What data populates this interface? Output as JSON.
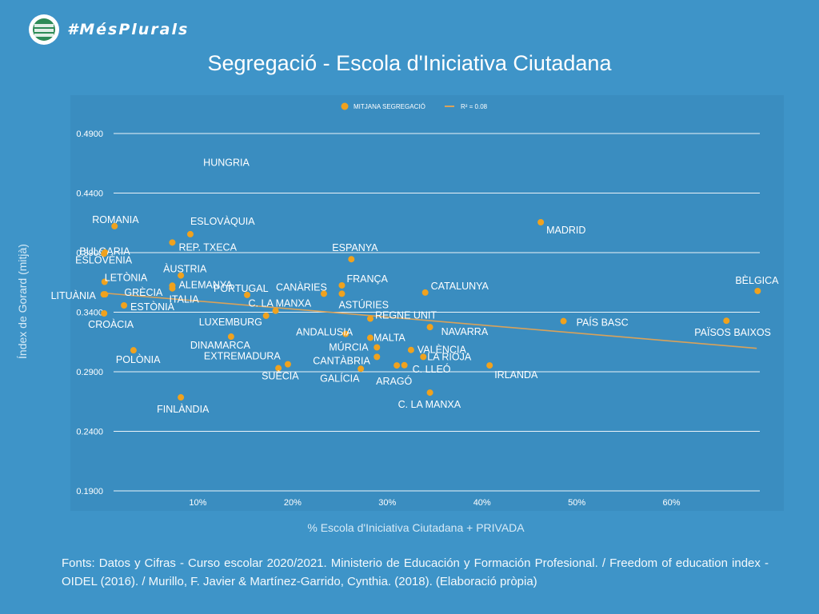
{
  "brand": {
    "name": "#MésPlurals",
    "logo_icon": "mesplurals-logo-icon"
  },
  "chart_data": {
    "type": "scatter",
    "title": "Segregació - Escola d'Iniciativa Ciutadana",
    "xlabel": "% Escola d'Iniciativa Ciutadana + PRIVADA",
    "ylabel": "Índex de Gorard (mitjà)",
    "xlim": [
      0,
      0.7
    ],
    "ylim": [
      0.19,
      0.49
    ],
    "x_ticks": [
      "10%",
      "20%",
      "30%",
      "40%",
      "50%",
      "60%"
    ],
    "x_tick_values": [
      0.1,
      0.2,
      0.3,
      0.4,
      0.5,
      0.6
    ],
    "y_ticks": [
      "0.1900",
      "0.2400",
      "0.2900",
      "0.3400",
      "0.3900",
      "0.4400",
      "0.4900"
    ],
    "y_tick_values": [
      0.19,
      0.24,
      0.29,
      0.34,
      0.39,
      0.44,
      0.49
    ],
    "grid": true,
    "legend_position": "top-center",
    "legend": {
      "series": "MITJANA SEGREGACIÓ",
      "trend": "R² = 0.08"
    },
    "colors": {
      "point": "#f0a21e",
      "trend": "#d9a25a",
      "plot_bg": "#3a8dc0",
      "page_bg": "#3e94c8",
      "grid": "#ffffff"
    },
    "trendline": {
      "x": [
        0.0,
        0.69
      ],
      "y": [
        0.3561,
        0.3097
      ]
    },
    "points": [
      {
        "label": "HUNGRIA",
        "x": 0.09,
        "y": 0.465
      },
      {
        "label": "ROMANIA",
        "x": 0.012,
        "y": 0.4122
      },
      {
        "label": "ESLOVÀQUIA",
        "x": 0.092,
        "y": 0.4055
      },
      {
        "label": "BULGARIA",
        "x": 0.002,
        "y": 0.3902
      },
      {
        "label": "ESLOVÈNIA",
        "x": 0.001,
        "y": 0.3891
      },
      {
        "label": "REP. TXECA",
        "x": 0.073,
        "y": 0.3985
      },
      {
        "label": "ÀUSTRIA",
        "x": 0.082,
        "y": 0.3708
      },
      {
        "label": "LETÒNIA",
        "x": 0.0015,
        "y": 0.3655
      },
      {
        "label": "ALEMANYA",
        "x": 0.073,
        "y": 0.3623
      },
      {
        "label": "ITALIA",
        "x": 0.073,
        "y": 0.36
      },
      {
        "label": "GRÈCIA",
        "x": 0.002,
        "y": 0.355
      },
      {
        "label": "LITUÀNIA",
        "x": 0.0005,
        "y": 0.355
      },
      {
        "label": "ESTÒNIA",
        "x": 0.022,
        "y": 0.3457
      },
      {
        "label": "CROÀCIA",
        "x": 0.001,
        "y": 0.339
      },
      {
        "label": "PORTUGAL",
        "x": 0.152,
        "y": 0.3545
      },
      {
        "label": "CANÀRIES",
        "x": 0.233,
        "y": 0.3555
      },
      {
        "label": "C. LA MANXA",
        "x": 0.182,
        "y": 0.3412
      },
      {
        "label": "LUXEMBURG",
        "x": 0.172,
        "y": 0.337
      },
      {
        "label": "ESPANYA",
        "x": 0.262,
        "y": 0.3845
      },
      {
        "label": "FRANÇA",
        "x": 0.252,
        "y": 0.3625
      },
      {
        "label": "ASTÚRIES",
        "x": 0.252,
        "y": 0.3555
      },
      {
        "label": "CATALUNYA",
        "x": 0.34,
        "y": 0.3565
      },
      {
        "label": "MADRID",
        "x": 0.462,
        "y": 0.4155
      },
      {
        "label": "BÈLGICA",
        "x": 0.691,
        "y": 0.3578
      },
      {
        "label": "PAÍS BASC",
        "x": 0.486,
        "y": 0.3325
      },
      {
        "label": "PAÏSOS BAIXOS",
        "x": 0.658,
        "y": 0.3328
      },
      {
        "label": "REGNE UNIT",
        "x": 0.282,
        "y": 0.3346
      },
      {
        "label": "NAVARRA",
        "x": 0.345,
        "y": 0.3275
      },
      {
        "label": "ANDALUSIA",
        "x": 0.256,
        "y": 0.3218
      },
      {
        "label": "MALTA",
        "x": 0.282,
        "y": 0.3185
      },
      {
        "label": "MÚRCIA",
        "x": 0.289,
        "y": 0.3105
      },
      {
        "label": "VALÈNCIA",
        "x": 0.325,
        "y": 0.3083
      },
      {
        "label": "LA RIOJA",
        "x": 0.338,
        "y": 0.3025
      },
      {
        "label": "CANTÀBRIA",
        "x": 0.289,
        "y": 0.3025
      },
      {
        "label": "C. LLEÓ",
        "x": 0.318,
        "y": 0.2955
      },
      {
        "label": "ARAGÓ",
        "x": 0.31,
        "y": 0.2953
      },
      {
        "label": "GALÍCIA",
        "x": 0.272,
        "y": 0.2925
      },
      {
        "label": "IRLANDA",
        "x": 0.408,
        "y": 0.2953
      },
      {
        "label": "DINAMARCA",
        "x": 0.135,
        "y": 0.3195
      },
      {
        "label": "EXTREMADURA",
        "x": 0.195,
        "y": 0.2963
      },
      {
        "label": "SUÈCIA",
        "x": 0.185,
        "y": 0.293
      },
      {
        "label": "POLÒNIA",
        "x": 0.032,
        "y": 0.308
      },
      {
        "label": "FINLÀNDIA",
        "x": 0.082,
        "y": 0.2685
      },
      {
        "label": "C. LA MANXA",
        "x": 0.345,
        "y": 0.2725
      }
    ]
  },
  "source": "Fonts: Datos y Cifras - Curso escolar 2020/2021. Ministerio de Educación y Formación Profesional. / Freedom of education index  - OIDEL (2016). / Murillo, F. Javier & Martínez-Garrido, Cynthia. (2018). (Elaboració pròpia)"
}
